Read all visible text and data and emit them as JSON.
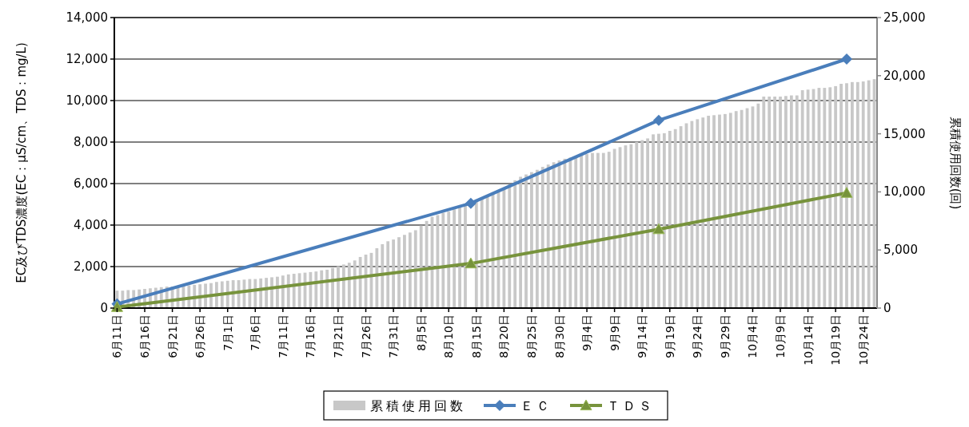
{
  "chart_data": {
    "type": "line",
    "ylabel": "EC及びTDS濃度(EC：μS/cm、TDS：mg/L)",
    "y2label": "累積使用回数(回)",
    "xlim": [
      "--06-11",
      "--10-26"
    ],
    "xticks": [
      {
        "value": "--06-11",
        "label": "6月11日"
      },
      {
        "value": "--06-16",
        "label": "6月16日"
      },
      {
        "value": "--06-21",
        "label": "6月21日"
      },
      {
        "value": "--06-26",
        "label": "6月26日"
      },
      {
        "value": "--07-01",
        "label": "7月1日"
      },
      {
        "value": "--07-06",
        "label": "7月6日"
      },
      {
        "value": "--07-11",
        "label": "7月11日"
      },
      {
        "value": "--07-16",
        "label": "7月16日"
      },
      {
        "value": "--07-21",
        "label": "7月21日"
      },
      {
        "value": "--07-26",
        "label": "7月26日"
      },
      {
        "value": "--07-31",
        "label": "7月31日"
      },
      {
        "value": "--08-05",
        "label": "8月5日"
      },
      {
        "value": "--08-10",
        "label": "8月10日"
      },
      {
        "value": "--08-15",
        "label": "8月15日"
      },
      {
        "value": "--08-20",
        "label": "8月20日"
      },
      {
        "value": "--08-25",
        "label": "8月25日"
      },
      {
        "value": "--08-30",
        "label": "8月30日"
      },
      {
        "value": "--09-04",
        "label": "9月4日"
      },
      {
        "value": "--09-09",
        "label": "9月9日"
      },
      {
        "value": "--09-14",
        "label": "9月14日"
      },
      {
        "value": "--09-19",
        "label": "9月19日"
      },
      {
        "value": "--09-24",
        "label": "9月24日"
      },
      {
        "value": "--09-29",
        "label": "9月29日"
      },
      {
        "value": "--10-04",
        "label": "10月4日"
      },
      {
        "value": "--10-09",
        "label": "10月9日"
      },
      {
        "value": "--10-14",
        "label": "10月14日"
      },
      {
        "value": "--10-19",
        "label": "10月19日"
      },
      {
        "value": "--10-24",
        "label": "10月24日"
      }
    ],
    "ylim": [
      0,
      14000
    ],
    "yticks": [
      {
        "value": 0,
        "label": "0"
      },
      {
        "value": 2000,
        "label": "2,000"
      },
      {
        "value": 4000,
        "label": "4,000"
      },
      {
        "value": 6000,
        "label": "6,000"
      },
      {
        "value": 8000,
        "label": "8,000"
      },
      {
        "value": 10000,
        "label": "10,000"
      },
      {
        "value": 12000,
        "label": "12,000"
      },
      {
        "value": 14000,
        "label": "14,000"
      }
    ],
    "y2lim": [
      0,
      25000
    ],
    "y2ticks": [
      {
        "value": 0,
        "label": "0"
      },
      {
        "value": 5000,
        "label": "5,000"
      },
      {
        "value": 10000,
        "label": "10,000"
      },
      {
        "value": 15000,
        "label": "15,000"
      },
      {
        "value": 20000,
        "label": "20,000"
      },
      {
        "value": 25000,
        "label": "25,000"
      }
    ],
    "grid": "y",
    "legend": "bottom",
    "series": [
      {
        "name": "累積使用回数",
        "type": "bar",
        "axis": "y2",
        "color": "#c8c8c8",
        "x": [
          "--06-11",
          "--06-12",
          "--06-13",
          "--06-14",
          "--06-15",
          "--06-16",
          "--06-17",
          "--06-18",
          "--06-19",
          "--06-20",
          "--06-21",
          "--06-22",
          "--06-23",
          "--06-24",
          "--06-25",
          "--06-26",
          "--06-27",
          "--06-28",
          "--06-29",
          "--06-30",
          "--07-01",
          "--07-02",
          "--07-03",
          "--07-04",
          "--07-05",
          "--07-06",
          "--07-07",
          "--07-08",
          "--07-09",
          "--07-10",
          "--07-11",
          "--07-12",
          "--07-13",
          "--07-14",
          "--07-15",
          "--07-16",
          "--07-17",
          "--07-18",
          "--07-19",
          "--07-20",
          "--07-21",
          "--07-22",
          "--07-23",
          "--07-24",
          "--07-25",
          "--07-26",
          "--07-27",
          "--07-28",
          "--07-29",
          "--07-30",
          "--07-31",
          "--08-01",
          "--08-02",
          "--08-03",
          "--08-04",
          "--08-05",
          "--08-06",
          "--08-07",
          "--08-08",
          "--08-09",
          "--08-10",
          "--08-11",
          "--08-12",
          "--08-13",
          "--08-15",
          "--08-16",
          "--08-17",
          "--08-18",
          "--08-19",
          "--08-20",
          "--08-21",
          "--08-22",
          "--08-23",
          "--08-24",
          "--08-25",
          "--08-26",
          "--08-27",
          "--08-28",
          "--08-29",
          "--08-30",
          "--08-31",
          "--09-01",
          "--09-02",
          "--09-03",
          "--09-04",
          "--09-05",
          "--09-06",
          "--09-07",
          "--09-08",
          "--09-09",
          "--09-10",
          "--09-11",
          "--09-12",
          "--09-13",
          "--09-14",
          "--09-15",
          "--09-16",
          "--09-17",
          "--09-18",
          "--09-19",
          "--09-20",
          "--09-21",
          "--09-22",
          "--09-23",
          "--09-24",
          "--09-25",
          "--09-26",
          "--09-27",
          "--09-28",
          "--09-29",
          "--09-30",
          "--10-01",
          "--10-02",
          "--10-03",
          "--10-04",
          "--10-05",
          "--10-06",
          "--10-07",
          "--10-08",
          "--10-09",
          "--10-10",
          "--10-11",
          "--10-12",
          "--10-13",
          "--10-14",
          "--10-15",
          "--10-16",
          "--10-17",
          "--10-18",
          "--10-19",
          "--10-20",
          "--10-21",
          "--10-22",
          "--10-23",
          "--10-24",
          "--10-25",
          "--10-26"
        ],
        "values": [
          1500,
          1500,
          1550,
          1550,
          1600,
          1650,
          1700,
          1750,
          1800,
          1850,
          1850,
          1900,
          1950,
          1950,
          2000,
          2050,
          2100,
          2150,
          2250,
          2300,
          2350,
          2400,
          2400,
          2450,
          2500,
          2500,
          2550,
          2600,
          2650,
          2700,
          2800,
          2900,
          2950,
          3000,
          3050,
          3100,
          3150,
          3250,
          3300,
          3450,
          3600,
          3750,
          3900,
          4100,
          4400,
          4600,
          4750,
          5150,
          5500,
          5750,
          5900,
          6100,
          6300,
          6500,
          6700,
          7100,
          7500,
          7850,
          8000,
          8200,
          8300,
          8500,
          8750,
          8950,
          9350,
          9500,
          9650,
          9800,
          10000,
          10300,
          10650,
          11000,
          11300,
          11500,
          11700,
          11900,
          12150,
          12350,
          12550,
          12700,
          12850,
          12950,
          13050,
          13150,
          13250,
          13350,
          13350,
          13350,
          13450,
          13700,
          13850,
          14000,
          14100,
          14300,
          14450,
          14600,
          14950,
          15000,
          15050,
          15250,
          15400,
          15650,
          15900,
          16100,
          16250,
          16400,
          16550,
          16600,
          16650,
          16700,
          16800,
          16950,
          17050,
          17200,
          17350,
          17600,
          18200,
          18200,
          18200,
          18200,
          18250,
          18300,
          18300,
          18750,
          18800,
          18850,
          18950,
          18950,
          19000,
          19100,
          19300,
          19350,
          19450,
          19450,
          19500,
          19600,
          19700
        ]
      },
      {
        "name": "ＥＣ",
        "color": "#4a7ebb",
        "marker": "diamond",
        "x": [
          "--06-11",
          "--08-14",
          "--09-17",
          "--10-21"
        ],
        "values": [
          200,
          5050,
          9050,
          12000
        ]
      },
      {
        "name": "ＴＤＳ",
        "color": "#77933c",
        "marker": "triangle",
        "x": [
          "--06-11",
          "--08-14",
          "--09-17",
          "--10-21"
        ],
        "values": [
          50,
          2150,
          3800,
          5550
        ]
      }
    ]
  }
}
